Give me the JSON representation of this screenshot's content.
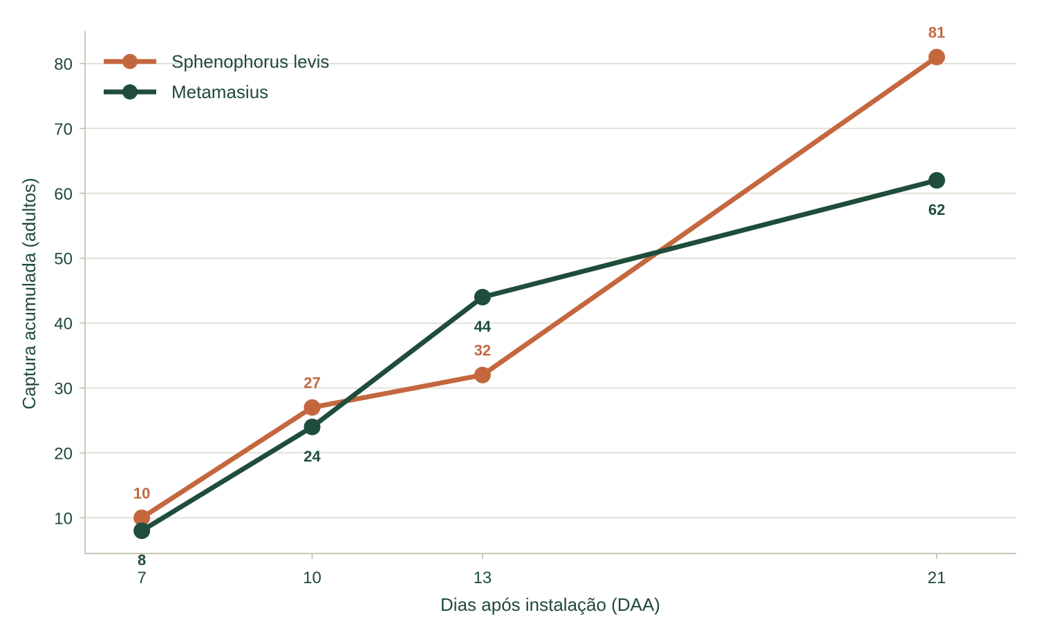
{
  "chart_data": {
    "type": "line",
    "x": [
      7,
      10,
      13,
      21
    ],
    "xlabel": "Dias após instalação (DAA)",
    "ylabel": "Captura acumulada (adultos)",
    "xlim": [
      6,
      22.4
    ],
    "ylim": [
      4.5,
      85
    ],
    "x_ticks": [
      "7",
      "10",
      "13",
      "21"
    ],
    "y_ticks": [
      "10",
      "20",
      "30",
      "40",
      "50",
      "60",
      "70",
      "80"
    ],
    "grid": "horizontal",
    "legend_position": "top-left",
    "series": [
      {
        "name": "Sphenophorus levis",
        "color": "#c4673f",
        "values": [
          10,
          27,
          32,
          81
        ],
        "labels": [
          "10",
          "27",
          "32",
          "81"
        ],
        "label_position": "above"
      },
      {
        "name": "Metamasius",
        "color": "#1f4d3b",
        "values": [
          8,
          24,
          44,
          62
        ],
        "labels": [
          "8",
          "24",
          "44",
          "62"
        ],
        "label_position": "below"
      }
    ]
  }
}
